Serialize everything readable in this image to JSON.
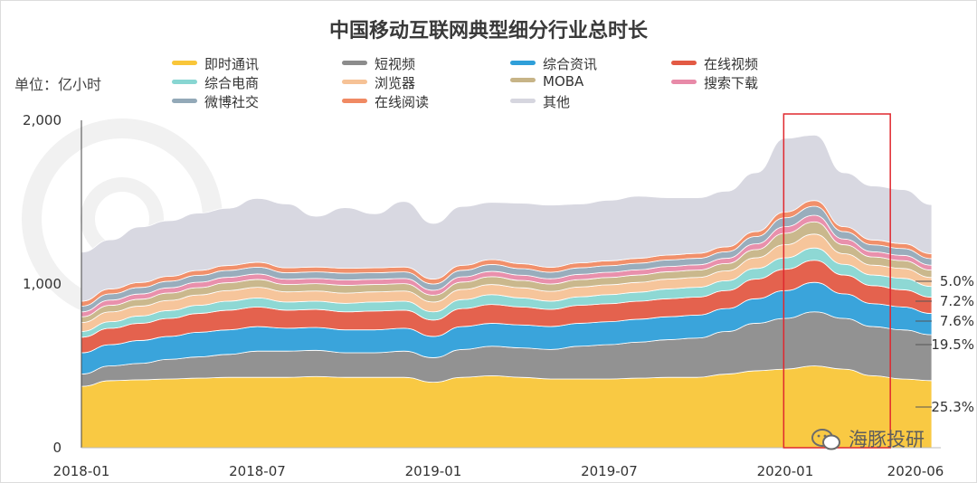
{
  "chart_data": {
    "type": "area",
    "title": "中国移动互联网典型细分行业总时长",
    "unit_label": "单位：亿小时",
    "ylim": [
      0,
      2000
    ],
    "y_ticks": [
      {
        "value": 0,
        "label": "0"
      },
      {
        "value": 1000,
        "label": "1,000"
      },
      {
        "value": 2000,
        "label": "2,000"
      }
    ],
    "x_ticks": [
      {
        "index": 0,
        "label": "2018-01"
      },
      {
        "index": 6,
        "label": "2018-07"
      },
      {
        "index": 12,
        "label": "2019-01"
      },
      {
        "index": 18,
        "label": "2019-07"
      },
      {
        "index": 24,
        "label": "2020-01"
      },
      {
        "index": 29,
        "label": "2020-06"
      }
    ],
    "x_count": 30,
    "series": [
      {
        "name": "即时通讯",
        "color": "#f9c639",
        "values": [
          375,
          410,
          415,
          420,
          425,
          430,
          430,
          430,
          435,
          430,
          430,
          430,
          400,
          430,
          440,
          430,
          420,
          420,
          420,
          425,
          430,
          430,
          450,
          470,
          480,
          500,
          480,
          440,
          420,
          410
        ]
      },
      {
        "name": "短视频",
        "color": "#8c8c8c",
        "values": [
          75,
          90,
          100,
          120,
          130,
          140,
          160,
          160,
          160,
          150,
          150,
          160,
          150,
          170,
          180,
          180,
          180,
          200,
          210,
          220,
          230,
          240,
          260,
          290,
          310,
          330,
          310,
          300,
          300,
          280
        ]
      },
      {
        "name": "综合资讯",
        "color": "#2f9fd9",
        "values": [
          130,
          130,
          140,
          140,
          150,
          150,
          150,
          140,
          140,
          140,
          140,
          140,
          130,
          140,
          140,
          140,
          140,
          140,
          140,
          140,
          140,
          140,
          140,
          150,
          170,
          180,
          150,
          140,
          140,
          130
        ]
      },
      {
        "name": "在线视频",
        "color": "#e35a44",
        "values": [
          95,
          100,
          105,
          110,
          115,
          120,
          120,
          110,
          110,
          110,
          115,
          110,
          100,
          110,
          115,
          110,
          105,
          110,
          110,
          110,
          110,
          110,
          110,
          120,
          130,
          135,
          115,
          110,
          105,
          100
        ]
      },
      {
        "name": "综合电商",
        "color": "#88d6d2",
        "values": [
          35,
          40,
          45,
          48,
          50,
          55,
          55,
          50,
          50,
          52,
          55,
          55,
          50,
          55,
          60,
          55,
          50,
          52,
          55,
          55,
          60,
          60,
          60,
          65,
          70,
          75,
          65,
          65,
          70,
          65
        ]
      },
      {
        "name": "浏览器",
        "color": "#f6c296",
        "values": [
          55,
          60,
          60,
          62,
          63,
          65,
          65,
          62,
          62,
          62,
          62,
          62,
          60,
          62,
          62,
          62,
          60,
          60,
          60,
          60,
          60,
          60,
          60,
          65,
          80,
          85,
          65,
          60,
          60,
          55
        ]
      },
      {
        "name": "MOBA",
        "color": "#c7b487",
        "values": [
          35,
          40,
          42,
          45,
          45,
          48,
          48,
          45,
          45,
          48,
          45,
          45,
          42,
          45,
          48,
          45,
          45,
          45,
          45,
          45,
          45,
          45,
          45,
          50,
          70,
          75,
          55,
          50,
          48,
          45
        ]
      },
      {
        "name": "搜索下载",
        "color": "#e88aa8",
        "values": [
          30,
          32,
          32,
          32,
          33,
          33,
          33,
          32,
          32,
          32,
          32,
          32,
          30,
          32,
          32,
          32,
          32,
          32,
          32,
          32,
          32,
          32,
          32,
          35,
          40,
          40,
          35,
          32,
          32,
          30
        ]
      },
      {
        "name": "微博社交",
        "color": "#93a9b8",
        "values": [
          35,
          38,
          40,
          40,
          42,
          42,
          42,
          40,
          40,
          42,
          40,
          40,
          38,
          40,
          42,
          40,
          40,
          40,
          40,
          40,
          40,
          40,
          40,
          45,
          55,
          55,
          45,
          42,
          42,
          40
        ]
      },
      {
        "name": "在线阅读",
        "color": "#f08a63",
        "values": [
          30,
          30,
          30,
          30,
          30,
          30,
          30,
          30,
          30,
          30,
          30,
          30,
          30,
          30,
          30,
          30,
          30,
          30,
          30,
          30,
          30,
          30,
          30,
          30,
          35,
          35,
          30,
          30,
          30,
          30
        ]
      },
      {
        "name": "其他",
        "color": "#d6d6df",
        "values": [
          300,
          300,
          340,
          340,
          350,
          350,
          390,
          390,
          310,
          370,
          330,
          400,
          340,
          360,
          350,
          370,
          380,
          360,
          370,
          380,
          350,
          340,
          340,
          360,
          450,
          400,
          330,
          330,
          330,
          300
        ]
      }
    ],
    "annotations": [
      "5.0%",
      "7.2%",
      "7.6%",
      "19.5%",
      "25.3%"
    ],
    "highlight": {
      "from_index": 25,
      "to_index": 27
    }
  },
  "watermark": "海豚投研"
}
